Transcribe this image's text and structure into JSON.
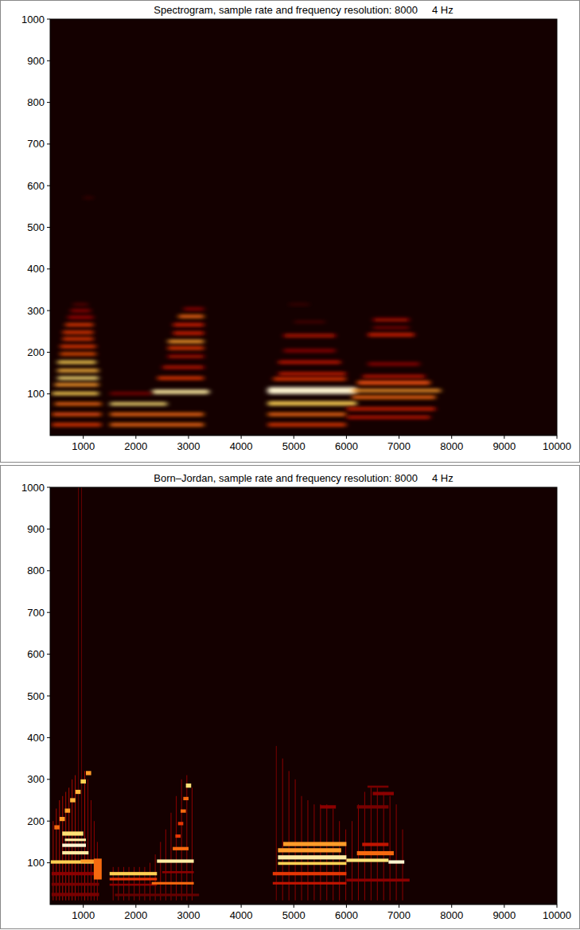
{
  "chart_data": [
    {
      "type": "heatmap",
      "title": "Spectrogram, sample rate and frequency resolution: 8000     4 Hz",
      "xlim": [
        370,
        10000
      ],
      "xticks": [
        1000,
        2000,
        3000,
        4000,
        5000,
        6000,
        7000,
        8000,
        9000,
        10000
      ],
      "ylim": [
        0,
        1000
      ],
      "yticks": [
        100,
        200,
        300,
        400,
        500,
        600,
        700,
        800,
        900,
        1000
      ],
      "color": "hot",
      "zlim": [
        0,
        1
      ],
      "grid": false,
      "cells": [
        [
          400,
          1350,
          22,
          30,
          0.5
        ],
        [
          400,
          1350,
          47,
          55,
          0.55
        ],
        [
          450,
          1350,
          72,
          80,
          0.6
        ],
        [
          400,
          1300,
          97,
          105,
          0.8
        ],
        [
          450,
          1300,
          118,
          126,
          0.7
        ],
        [
          500,
          1300,
          134,
          142,
          0.85
        ],
        [
          500,
          1300,
          152,
          160,
          0.75
        ],
        [
          500,
          1250,
          172,
          180,
          0.8
        ],
        [
          550,
          1250,
          192,
          200,
          0.55
        ],
        [
          550,
          1250,
          210,
          218,
          0.5
        ],
        [
          600,
          1200,
          228,
          236,
          0.5
        ],
        [
          600,
          1200,
          244,
          252,
          0.5
        ],
        [
          650,
          1200,
          262,
          270,
          0.5
        ],
        [
          700,
          1200,
          280,
          288,
          0.35
        ],
        [
          750,
          1150,
          296,
          304,
          0.3
        ],
        [
          800,
          1100,
          312,
          318,
          0.2
        ],
        [
          1000,
          1200,
          568,
          574,
          0.1
        ],
        [
          1500,
          3300,
          22,
          30,
          0.6
        ],
        [
          1500,
          3300,
          47,
          55,
          0.6
        ],
        [
          1500,
          2600,
          72,
          80,
          0.85
        ],
        [
          2300,
          3400,
          100,
          110,
          0.9
        ],
        [
          1500,
          2300,
          98,
          104,
          0.3
        ],
        [
          2400,
          3300,
          134,
          142,
          0.5
        ],
        [
          2500,
          3300,
          160,
          168,
          0.4
        ],
        [
          2600,
          3300,
          186,
          194,
          0.35
        ],
        [
          2600,
          3300,
          206,
          214,
          0.5
        ],
        [
          2600,
          3300,
          222,
          230,
          0.7
        ],
        [
          2700,
          3300,
          242,
          250,
          0.45
        ],
        [
          2700,
          3300,
          262,
          270,
          0.45
        ],
        [
          2800,
          3300,
          282,
          290,
          0.6
        ],
        [
          2900,
          3300,
          300,
          308,
          0.3
        ],
        [
          4500,
          6000,
          22,
          30,
          0.5
        ],
        [
          4500,
          6000,
          47,
          55,
          0.6
        ],
        [
          4500,
          6200,
          72,
          82,
          0.8
        ],
        [
          4500,
          6200,
          100,
          116,
          0.95
        ],
        [
          4600,
          6000,
          132,
          140,
          0.5
        ],
        [
          4700,
          6000,
          145,
          152,
          0.45
        ],
        [
          4700,
          5900,
          172,
          180,
          0.4
        ],
        [
          4800,
          5800,
          200,
          208,
          0.3
        ],
        [
          4800,
          5800,
          236,
          244,
          0.4
        ],
        [
          5000,
          5600,
          270,
          276,
          0.15
        ],
        [
          4900,
          5300,
          312,
          318,
          0.1
        ],
        [
          6000,
          7600,
          40,
          48,
          0.4
        ],
        [
          6000,
          7700,
          60,
          68,
          0.45
        ],
        [
          6100,
          7700,
          88,
          96,
          0.6
        ],
        [
          6100,
          7800,
          104,
          112,
          0.7
        ],
        [
          6200,
          7600,
          122,
          132,
          0.55
        ],
        [
          6300,
          7500,
          138,
          146,
          0.4
        ],
        [
          6400,
          7400,
          168,
          176,
          0.3
        ],
        [
          6400,
          7300,
          238,
          246,
          0.45
        ],
        [
          6500,
          7200,
          256,
          262,
          0.3
        ],
        [
          6500,
          7200,
          274,
          282,
          0.35
        ]
      ]
    },
    {
      "type": "heatmap",
      "title": "Born–Jordan, sample rate and frequency resolution: 8000     4 Hz",
      "xlim": [
        370,
        10000
      ],
      "xticks": [
        1000,
        2000,
        3000,
        4000,
        5000,
        6000,
        7000,
        8000,
        9000,
        10000
      ],
      "ylim": [
        0,
        1000
      ],
      "yticks": [
        100,
        200,
        300,
        400,
        500,
        600,
        700,
        800,
        900,
        1000
      ],
      "color": "hot",
      "zlim": [
        0,
        1
      ],
      "grid": false,
      "cells": [
        [
          420,
          428,
          10,
          200,
          0.35
        ],
        [
          480,
          488,
          10,
          230,
          0.35
        ],
        [
          540,
          548,
          10,
          250,
          0.35
        ],
        [
          600,
          608,
          10,
          260,
          0.35
        ],
        [
          660,
          668,
          10,
          270,
          0.35
        ],
        [
          720,
          728,
          10,
          280,
          0.35
        ],
        [
          780,
          788,
          10,
          300,
          0.35
        ],
        [
          840,
          848,
          10,
          310,
          0.35
        ],
        [
          900,
          908,
          10,
          1000,
          0.2
        ],
        [
          960,
          968,
          10,
          1000,
          0.2
        ],
        [
          1020,
          1028,
          10,
          320,
          0.35
        ],
        [
          1080,
          1088,
          10,
          300,
          0.3
        ],
        [
          1140,
          1148,
          10,
          250,
          0.3
        ],
        [
          1200,
          1208,
          10,
          200,
          0.3
        ],
        [
          1260,
          1268,
          10,
          150,
          0.3
        ],
        [
          1560,
          1568,
          10,
          90,
          0.3
        ],
        [
          1660,
          1668,
          10,
          90,
          0.3
        ],
        [
          1760,
          1768,
          10,
          90,
          0.3
        ],
        [
          1860,
          1868,
          10,
          90,
          0.3
        ],
        [
          1960,
          1968,
          10,
          90,
          0.3
        ],
        [
          2060,
          2068,
          10,
          90,
          0.3
        ],
        [
          2160,
          2168,
          10,
          90,
          0.3
        ],
        [
          2260,
          2268,
          10,
          100,
          0.3
        ],
        [
          2360,
          2368,
          10,
          120,
          0.3
        ],
        [
          2460,
          2468,
          10,
          150,
          0.3
        ],
        [
          2560,
          2568,
          10,
          180,
          0.3
        ],
        [
          2660,
          2668,
          10,
          220,
          0.3
        ],
        [
          2760,
          2768,
          10,
          260,
          0.3
        ],
        [
          2860,
          2868,
          10,
          300,
          0.3
        ],
        [
          2960,
          2968,
          10,
          310,
          0.3
        ],
        [
          3060,
          3068,
          10,
          280,
          0.3
        ],
        [
          4660,
          4668,
          10,
          380,
          0.25
        ],
        [
          4780,
          4788,
          10,
          350,
          0.3
        ],
        [
          4900,
          4908,
          10,
          320,
          0.3
        ],
        [
          5020,
          5028,
          10,
          300,
          0.3
        ],
        [
          5140,
          5148,
          10,
          260,
          0.3
        ],
        [
          5260,
          5268,
          10,
          250,
          0.3
        ],
        [
          5380,
          5388,
          10,
          240,
          0.3
        ],
        [
          5500,
          5508,
          10,
          240,
          0.3
        ],
        [
          5620,
          5628,
          10,
          240,
          0.3
        ],
        [
          5740,
          5748,
          10,
          230,
          0.3
        ],
        [
          5860,
          5868,
          10,
          200,
          0.3
        ],
        [
          5980,
          5988,
          10,
          180,
          0.3
        ],
        [
          6100,
          6108,
          10,
          200,
          0.3
        ],
        [
          6220,
          6228,
          10,
          240,
          0.3
        ],
        [
          6340,
          6348,
          10,
          270,
          0.3
        ],
        [
          6460,
          6468,
          10,
          280,
          0.3
        ],
        [
          6580,
          6588,
          10,
          280,
          0.3
        ],
        [
          6700,
          6708,
          10,
          270,
          0.3
        ],
        [
          6820,
          6828,
          10,
          260,
          0.3
        ],
        [
          6940,
          6948,
          10,
          240,
          0.3
        ],
        [
          7060,
          7068,
          10,
          180,
          0.3
        ],
        [
          400,
          1300,
          20,
          28,
          0.25
        ],
        [
          400,
          1300,
          45,
          52,
          0.25
        ],
        [
          400,
          1300,
          70,
          78,
          0.3
        ],
        [
          380,
          1200,
          98,
          106,
          0.8
        ],
        [
          600,
          1100,
          120,
          128,
          0.9
        ],
        [
          600,
          1050,
          138,
          146,
          0.95
        ],
        [
          650,
          1050,
          152,
          158,
          0.9
        ],
        [
          600,
          1000,
          165,
          175,
          0.85
        ],
        [
          950,
          1250,
          100,
          108,
          0.7
        ],
        [
          1200,
          1350,
          60,
          110,
          0.6
        ],
        [
          450,
          550,
          180,
          190,
          0.6
        ],
        [
          550,
          650,
          200,
          210,
          0.7
        ],
        [
          650,
          750,
          220,
          230,
          0.7
        ],
        [
          750,
          850,
          245,
          255,
          0.75
        ],
        [
          850,
          950,
          265,
          275,
          0.75
        ],
        [
          950,
          1050,
          290,
          300,
          0.8
        ],
        [
          1050,
          1150,
          310,
          320,
          0.7
        ],
        [
          1500,
          2400,
          70,
          78,
          0.8
        ],
        [
          1500,
          2400,
          58,
          64,
          0.5
        ],
        [
          1500,
          2400,
          45,
          50,
          0.3
        ],
        [
          2400,
          3100,
          100,
          108,
          0.9
        ],
        [
          2300,
          3100,
          48,
          54,
          0.6
        ],
        [
          2500,
          3100,
          75,
          80,
          0.3
        ],
        [
          2700,
          3000,
          130,
          138,
          0.6
        ],
        [
          2750,
          2850,
          160,
          168,
          0.5
        ],
        [
          2800,
          2900,
          190,
          198,
          0.5
        ],
        [
          2850,
          2950,
          220,
          228,
          0.6
        ],
        [
          2900,
          3000,
          250,
          258,
          0.6
        ],
        [
          2950,
          3050,
          280,
          290,
          0.85
        ],
        [
          1600,
          3200,
          20,
          26,
          0.2
        ],
        [
          4700,
          6000,
          108,
          118,
          0.9
        ],
        [
          4700,
          6000,
          95,
          102,
          0.8
        ],
        [
          4700,
          5900,
          125,
          135,
          0.7
        ],
        [
          4800,
          6000,
          140,
          150,
          0.7
        ],
        [
          4600,
          6000,
          70,
          78,
          0.5
        ],
        [
          4600,
          6000,
          48,
          54,
          0.4
        ],
        [
          6000,
          6800,
          102,
          110,
          0.85
        ],
        [
          6800,
          7100,
          98,
          106,
          0.95
        ],
        [
          6200,
          6900,
          118,
          128,
          0.6
        ],
        [
          6300,
          6800,
          140,
          148,
          0.4
        ],
        [
          5500,
          5800,
          230,
          238,
          0.3
        ],
        [
          6500,
          6900,
          262,
          270,
          0.3
        ],
        [
          6400,
          6800,
          280,
          285,
          0.25
        ],
        [
          6000,
          7200,
          55,
          62,
          0.3
        ],
        [
          6200,
          6800,
          230,
          238,
          0.25
        ]
      ]
    }
  ]
}
